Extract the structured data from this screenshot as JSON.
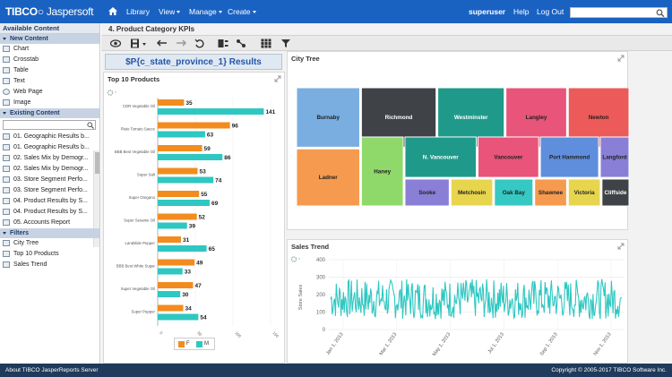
{
  "topbar": {
    "logo_brand": "TIBCO",
    "logo_product": "Jaspersoft",
    "nav": [
      {
        "label": "Library",
        "caret": false
      },
      {
        "label": "View",
        "caret": true
      },
      {
        "label": "Manage",
        "caret": true
      },
      {
        "label": "Create",
        "caret": true
      }
    ],
    "user": "superuser",
    "help": "Help",
    "logout": "Log Out",
    "search_value": ""
  },
  "left": {
    "title": "Available Content",
    "new_content_label": "New Content",
    "new_content": [
      "Chart",
      "Crosstab",
      "Table",
      "Text",
      "Web Page",
      "Image"
    ],
    "existing_content_label": "Existing Content",
    "search_value": "",
    "existing_content": [
      "01. Geographic Results b...",
      "01. Geographic Results b...",
      "02. Sales Mix by Demogr...",
      "02. Sales Mix by Demogr...",
      "03. Store Segment Perfo...",
      "03. Store Segment Perfo...",
      "04. Product Results by S...",
      "04. Product Results by S...",
      "05. Accounts Report"
    ],
    "filters_label": "Filters",
    "filters": [
      "City Tree",
      "Top 10 Products",
      "Sales Trend"
    ]
  },
  "main": {
    "report_title": "4. Product Category KPIs",
    "param_title": "$P{c_state_province_1} Results"
  },
  "top10": {
    "title": "Top 10 Products",
    "legend_a": "F",
    "legend_b": "M",
    "colors": {
      "a": "#f28c1e",
      "b": "#2fc7c1"
    }
  },
  "citytree": {
    "title": "City Tree"
  },
  "salestrend": {
    "title": "Sales Trend",
    "color": "#2fc7c1"
  },
  "chart_data": [
    {
      "type": "bar",
      "title": "Top 10 Products",
      "orientation": "horizontal",
      "categories": [
        "CDR Vegetable Oil",
        "Plato Tomato Sauce",
        "BBB Best Vegetable Oil",
        "Super Salt",
        "Super Oregano",
        "Super Sesame Oil",
        "Landslide Pepper",
        "BBB Best White Sugar",
        "Super Vegetable Oil",
        "Super Pepper"
      ],
      "series": [
        {
          "name": "F",
          "values": [
            35,
            96,
            59,
            53,
            55,
            52,
            31,
            49,
            47,
            34
          ]
        },
        {
          "name": "M",
          "values": [
            141,
            63,
            86,
            74,
            69,
            39,
            65,
            33,
            30,
            54
          ]
        }
      ],
      "xlim": [
        0,
        150
      ],
      "xticks": [
        0,
        50,
        100,
        150
      ],
      "legend": "bottom"
    },
    {
      "type": "treemap",
      "title": "City Tree",
      "cells": [
        {
          "label": "Burnaby",
          "color": "#7aaee0"
        },
        {
          "label": "Richmond",
          "color": "#3f4347"
        },
        {
          "label": "Westminster",
          "color": "#1f9a8a"
        },
        {
          "label": "Langley",
          "color": "#e8547a"
        },
        {
          "label": "Newton",
          "color": "#ec5a5a"
        },
        {
          "label": "Ladner",
          "color": "#f59a4e"
        },
        {
          "label": "Haney",
          "color": "#8fd96a"
        },
        {
          "label": "N. Vancouver",
          "color": "#1f9a8a"
        },
        {
          "label": "Vancouver",
          "color": "#e8547a"
        },
        {
          "label": "Port Hammond",
          "color": "#5f8fdc"
        },
        {
          "label": "Langford",
          "color": "#8a7fd6"
        },
        {
          "label": "Sooke",
          "color": "#8a7fd6"
        },
        {
          "label": "Metchosin",
          "color": "#e8d54e"
        },
        {
          "label": "Oak Bay",
          "color": "#36c8c2"
        },
        {
          "label": "Shawnee",
          "color": "#f59a4e"
        },
        {
          "label": "Victoria",
          "color": "#e8d54e"
        },
        {
          "label": "Cliffside",
          "color": "#3f4347"
        }
      ]
    },
    {
      "type": "line",
      "title": "Sales Trend",
      "ylabel": "Store Sales",
      "ylim": [
        0,
        400
      ],
      "yticks": [
        0,
        100,
        200,
        300,
        400
      ],
      "xticks": [
        "Jan 1, 2013",
        "Mar 1, 2013",
        "May 1, 2013",
        "Jul 1, 2013",
        "Sep 1, 2013",
        "Nov 1, 2013"
      ],
      "grid": true
    }
  ],
  "footer": {
    "left": "About TIBCO JasperReports Server",
    "right": "Copyright © 2005-2017 TIBCO Software Inc."
  }
}
